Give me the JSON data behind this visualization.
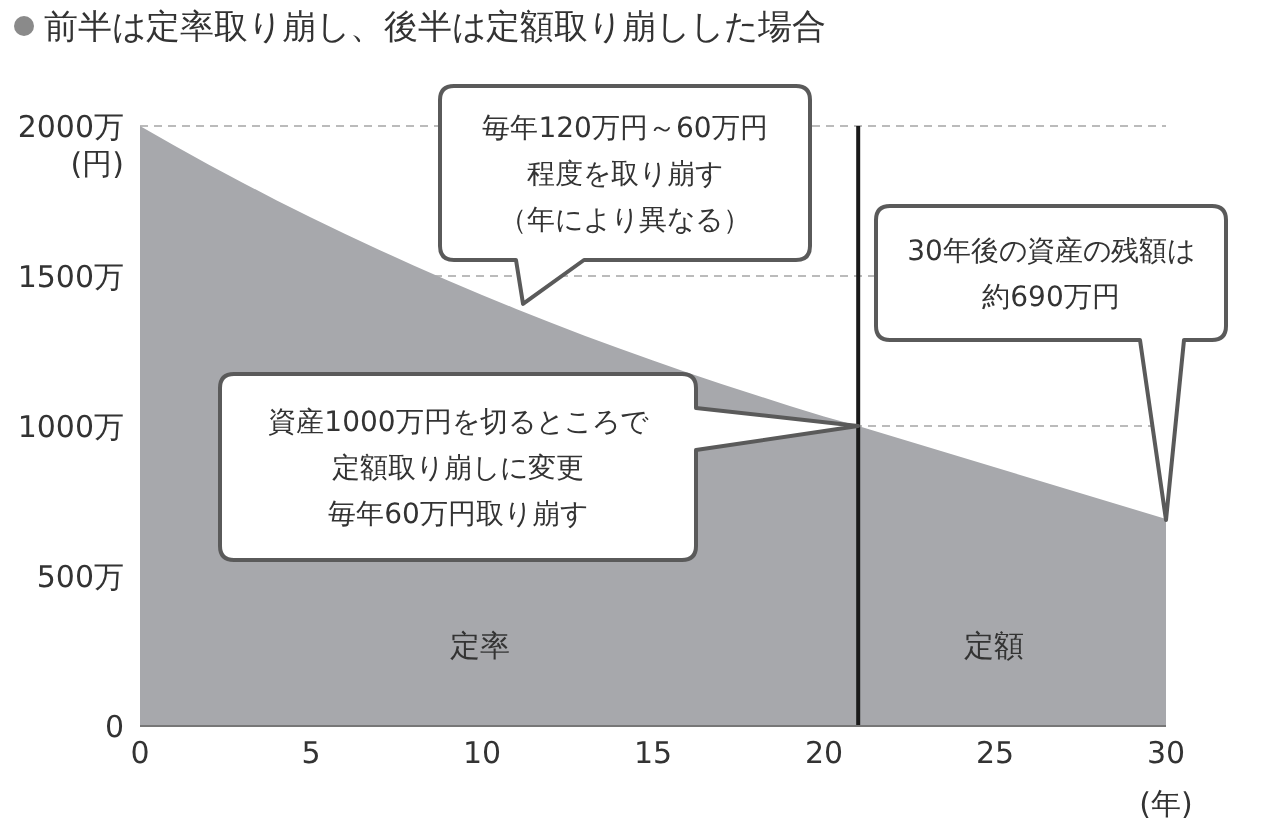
{
  "chart_data": {
    "type": "area",
    "title": "前半は定率取り崩し、後半は定額取り崩しした場合",
    "x": [
      0,
      1,
      2,
      3,
      4,
      5,
      6,
      7,
      8,
      9,
      10,
      11,
      12,
      13,
      14,
      15,
      16,
      17,
      18,
      19,
      20,
      21,
      30
    ],
    "series": [
      {
        "color": "#a7a8ac",
        "values": [
          2000,
          1935,
          1872,
          1811,
          1752,
          1695,
          1640,
          1587,
          1535,
          1485,
          1437,
          1390,
          1345,
          1301,
          1259,
          1218,
          1178,
          1140,
          1103,
          1067,
          1032,
          1000,
          690
        ]
      }
    ],
    "xlim": [
      0,
      30
    ],
    "xticks": [
      0,
      5,
      10,
      15,
      20,
      25,
      30
    ],
    "ylim": [
      0,
      2000
    ],
    "yticks": [
      0,
      {
        "value": 500,
        "label": "500万"
      },
      {
        "value": 1000,
        "label": "1000万"
      },
      {
        "value": 1500,
        "label": "1500万"
      },
      {
        "value": 2000,
        "label": "2000万"
      }
    ],
    "xlabel": "(年)",
    "ylabel": "(円)",
    "grid": "y",
    "ref_lines": [
      {
        "axis": "x",
        "value": 21,
        "color": "#1a1a1a"
      }
    ],
    "annotations": [
      {
        "text": "毎年120万円～60万円程度を取り崩す（年により異なる）",
        "x": 11.2,
        "y": 1407
      },
      "資産1000万円を切るところで定額取り崩しに変更毎年60万円取り崩す",
      "30年後の資産の残額は約690万円",
      "定率",
      "定額"
    ]
  }
}
